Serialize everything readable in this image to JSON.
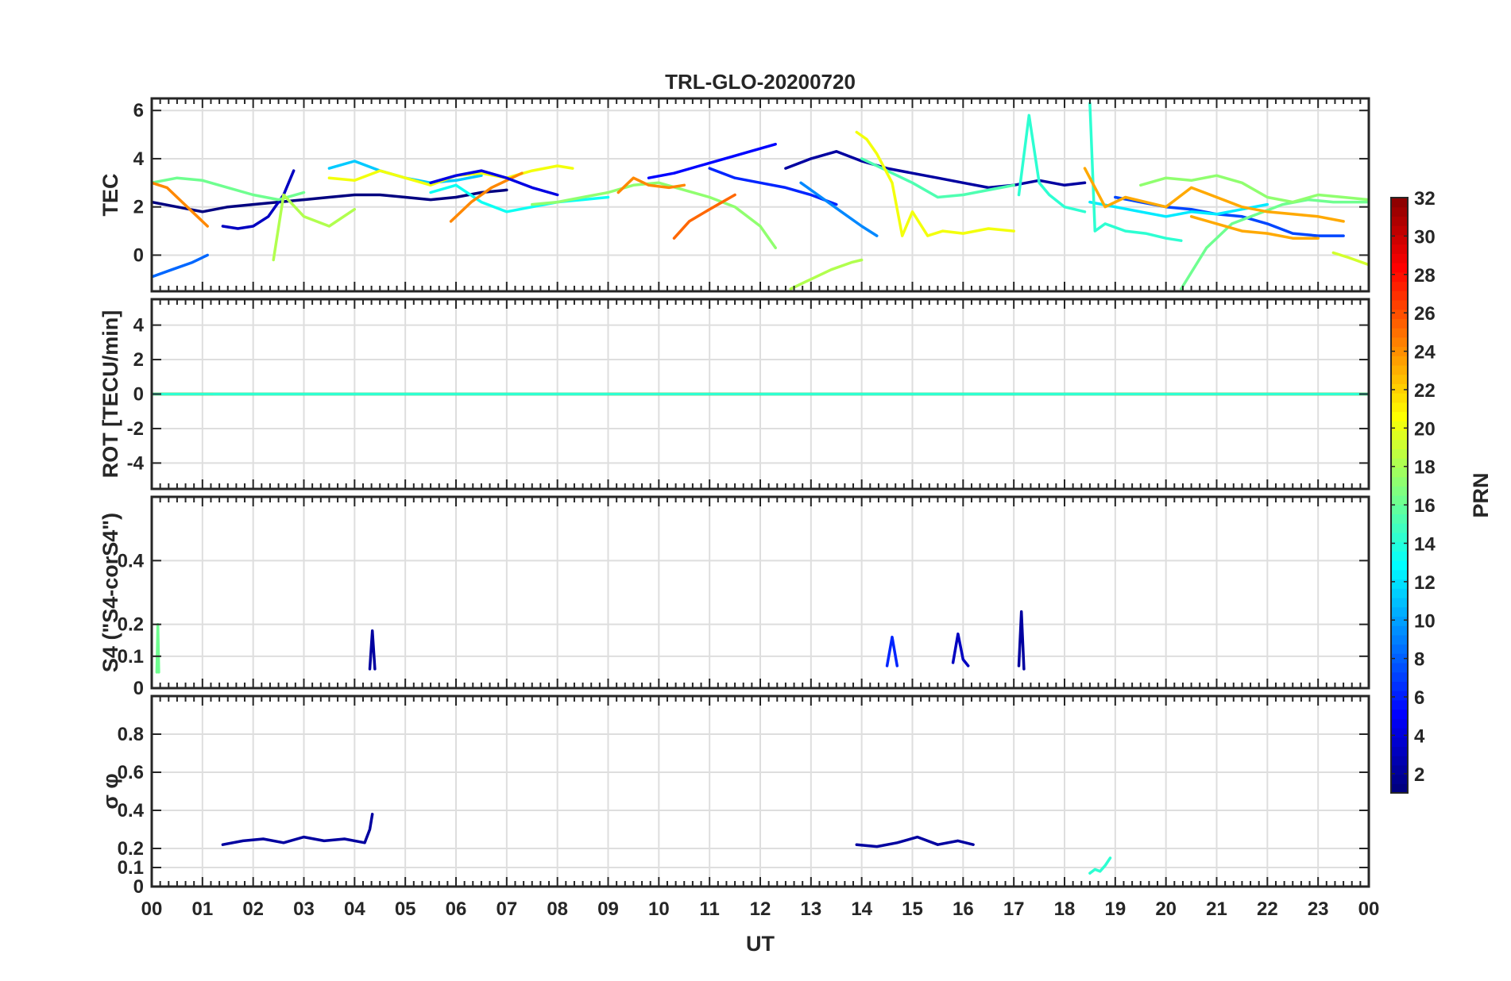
{
  "chart_data": {
    "type": "line",
    "title": "TRL-GLO-20200720",
    "xlabel": "UT",
    "x_range": [
      0,
      24
    ],
    "x_tick_labels": [
      "00",
      "01",
      "02",
      "03",
      "04",
      "05",
      "06",
      "07",
      "08",
      "09",
      "10",
      "11",
      "12",
      "13",
      "14",
      "15",
      "16",
      "17",
      "18",
      "19",
      "20",
      "21",
      "22",
      "23",
      "00"
    ],
    "grid": true,
    "colorbar": {
      "label": "PRN",
      "range": [
        1,
        32
      ],
      "tick_labels": [
        "32",
        "30",
        "28",
        "26",
        "24",
        "22",
        "20",
        "18",
        "16",
        "14",
        "12",
        "10",
        "8",
        "6",
        "4",
        "2"
      ],
      "colormap": "jet",
      "placement": "right"
    },
    "panels": [
      {
        "id": "tec",
        "ylabel": "TEC",
        "ylim": [
          -1.5,
          6.5
        ],
        "y_ticks": [
          0,
          2,
          4,
          6
        ],
        "y_tick_labels": [
          "0",
          "2",
          "4",
          "6"
        ],
        "series": [
          {
            "prn": 1,
            "x": [
              0,
              0.5,
              1,
              1.5,
              2,
              2.5,
              3,
              3.5,
              4,
              4.5,
              5,
              5.5,
              6,
              6.5,
              7
            ],
            "y": [
              2.2,
              2.0,
              1.8,
              2.0,
              2.1,
              2.2,
              2.3,
              2.4,
              2.5,
              2.5,
              2.4,
              2.3,
              2.4,
              2.6,
              2.7
            ]
          },
          {
            "prn": 2,
            "x": [
              12.5,
              13,
              13.5,
              14,
              14.5,
              15,
              15.5,
              16,
              16.5,
              17,
              17.5,
              18,
              18.4
            ],
            "y": [
              3.6,
              4.0,
              4.3,
              3.9,
              3.6,
              3.4,
              3.2,
              3.0,
              2.8,
              2.9,
              3.1,
              2.9,
              3.0
            ]
          },
          {
            "prn": 3,
            "x": [
              1.4,
              1.7,
              2.0,
              2.3,
              2.6,
              2.8
            ],
            "y": [
              1.2,
              1.1,
              1.2,
              1.6,
              2.5,
              3.5
            ]
          },
          {
            "prn": 5,
            "x": [
              9.8,
              10.3,
              10.8,
              11.3,
              11.8,
              12.3
            ],
            "y": [
              3.2,
              3.4,
              3.7,
              4.0,
              4.3,
              4.6
            ]
          },
          {
            "prn": 6,
            "x": [
              11.0,
              11.5,
              12.0,
              12.5,
              13.0,
              13.5
            ],
            "y": [
              3.6,
              3.2,
              3.0,
              2.8,
              2.5,
              2.1
            ]
          },
          {
            "prn": 7,
            "x": [
              19.0,
              19.5,
              20.0,
              20.5,
              21.0,
              21.5,
              22.0,
              22.5,
              23.0,
              23.5
            ],
            "y": [
              2.4,
              2.2,
              2.0,
              1.9,
              1.7,
              1.6,
              1.3,
              0.9,
              0.8,
              0.8
            ]
          },
          {
            "prn": 8,
            "x": [
              0,
              0.4,
              0.8,
              1.1
            ],
            "y": [
              -0.9,
              -0.6,
              -0.3,
              0.0
            ]
          },
          {
            "prn": 9,
            "x": [
              12.8,
              13.2,
              13.6,
              14.0,
              14.3
            ],
            "y": [
              3.0,
              2.4,
              1.8,
              1.2,
              0.8
            ]
          },
          {
            "prn": 11,
            "x": [
              3.5,
              4.0,
              4.5,
              5.0,
              5.5,
              6.0,
              6.5
            ],
            "y": [
              3.6,
              3.9,
              3.5,
              3.2,
              3.0,
              3.1,
              3.3
            ]
          },
          {
            "prn": 13,
            "x": [
              5.5,
              6.0,
              6.5,
              7.0,
              7.5,
              8.0,
              8.5,
              9.0
            ],
            "y": [
              2.6,
              2.9,
              2.2,
              1.8,
              2.0,
              2.2,
              2.3,
              2.4
            ]
          },
          {
            "prn": 12,
            "x": [
              18.5,
              19,
              19.5,
              20,
              20.5,
              21,
              21.5,
              22
            ],
            "y": [
              2.2,
              2.0,
              1.8,
              1.6,
              1.8,
              1.7,
              1.9,
              2.1
            ]
          },
          {
            "prn": 14,
            "x": [
              17.1,
              17.3,
              17.5,
              17.7,
              18.0,
              18.4
            ],
            "y": [
              2.5,
              5.8,
              3.0,
              2.5,
              2.0,
              1.8
            ]
          },
          {
            "prn": 14,
            "x": [
              18.5,
              18.6,
              18.8,
              19.2,
              19.6,
              20.0,
              20.3
            ],
            "y": [
              6.3,
              1.0,
              1.3,
              1.0,
              0.9,
              0.7,
              0.6
            ]
          },
          {
            "prn": 15,
            "x": [
              14.0,
              14.5,
              15.0,
              15.5,
              16.0,
              16.5,
              17.0
            ],
            "y": [
              4.0,
              3.5,
              3.0,
              2.4,
              2.5,
              2.7,
              2.9
            ]
          },
          {
            "prn": 16,
            "x": [
              0,
              0.5,
              1.0,
              1.5,
              2.0,
              2.5,
              3.0
            ],
            "y": [
              3.0,
              3.2,
              3.1,
              2.8,
              2.5,
              2.3,
              2.6
            ]
          },
          {
            "prn": 16,
            "x": [
              20.3,
              20.8,
              21.3,
              21.8,
              22.3,
              22.8,
              23.3,
              24
            ],
            "y": [
              -1.4,
              0.3,
              1.3,
              1.7,
              2.1,
              2.3,
              2.2,
              2.2
            ]
          },
          {
            "prn": 17,
            "x": [
              7.5,
              8.0,
              8.5,
              9.0,
              9.5,
              10.0,
              10.5,
              11.0,
              11.5,
              12.0,
              12.3
            ],
            "y": [
              2.1,
              2.2,
              2.4,
              2.6,
              2.9,
              3.0,
              2.7,
              2.4,
              2.0,
              1.2,
              0.3
            ]
          },
          {
            "prn": 17,
            "x": [
              19.5,
              20.0,
              20.5,
              21.0,
              21.5,
              22.0,
              22.5,
              23.0,
              23.5,
              24
            ],
            "y": [
              2.9,
              3.2,
              3.1,
              3.3,
              3.0,
              2.4,
              2.2,
              2.5,
              2.4,
              2.3
            ]
          },
          {
            "prn": 18,
            "x": [
              2.4,
              2.6,
              3.0,
              3.5,
              4.0
            ],
            "y": [
              -0.2,
              2.5,
              1.6,
              1.2,
              1.9
            ]
          },
          {
            "prn": 18,
            "x": [
              12.6,
              13.0,
              13.4,
              13.8,
              14.0
            ],
            "y": [
              -1.4,
              -1.0,
              -0.6,
              -0.3,
              -0.2
            ]
          },
          {
            "prn": 19,
            "x": [
              23.3,
              23.6,
              24
            ],
            "y": [
              0.1,
              -0.1,
              -0.4
            ]
          },
          {
            "prn": 20,
            "x": [
              3.5,
              4.0,
              4.5,
              5.0,
              5.5,
              6.0,
              6.5,
              7.0,
              7.5,
              8.0,
              8.3
            ],
            "y": [
              3.2,
              3.1,
              3.5,
              3.2,
              2.9,
              3.3,
              3.4,
              3.2,
              3.5,
              3.7,
              3.6
            ]
          },
          {
            "prn": 20,
            "x": [
              13.9,
              14.1,
              14.3,
              14.6,
              14.8,
              15.0,
              15.3,
              15.6,
              16.0,
              16.5,
              17.0
            ],
            "y": [
              5.1,
              4.8,
              4.2,
              3.0,
              0.8,
              1.8,
              0.8,
              1.0,
              0.9,
              1.1,
              1.0
            ]
          },
          {
            "prn": 24,
            "x": [
              0,
              0.3,
              0.6,
              0.9,
              1.1
            ],
            "y": [
              3.0,
              2.8,
              2.2,
              1.6,
              1.2
            ]
          },
          {
            "prn": 24,
            "x": [
              5.9,
              6.3,
              6.7,
              7.0,
              7.3
            ],
            "y": [
              1.4,
              2.2,
              2.8,
              3.1,
              3.4
            ]
          },
          {
            "prn": 24,
            "x": [
              9.2,
              9.5,
              9.8,
              10.2,
              10.5
            ],
            "y": [
              2.6,
              3.2,
              2.9,
              2.8,
              2.9
            ]
          },
          {
            "prn": 25,
            "x": [
              10.3,
              10.6,
              11.0,
              11.5
            ],
            "y": [
              0.7,
              1.4,
              1.9,
              2.5
            ]
          },
          {
            "prn": 23,
            "x": [
              18.4,
              18.8,
              19.2,
              19.6,
              20.0,
              20.5,
              21.0,
              21.5,
              22.0,
              22.5,
              23.0,
              23.5
            ],
            "y": [
              3.6,
              2.0,
              2.4,
              2.2,
              2.0,
              2.8,
              2.4,
              2.0,
              1.8,
              1.7,
              1.6,
              1.4
            ]
          },
          {
            "prn": 23,
            "x": [
              20.5,
              21.0,
              21.5,
              22.0,
              22.5,
              23.0
            ],
            "y": [
              1.6,
              1.3,
              1.0,
              0.9,
              0.7,
              0.7
            ]
          },
          {
            "prn": 4,
            "x": [
              5.5,
              6.0,
              6.5,
              7.0,
              7.5,
              8.0
            ],
            "y": [
              3.0,
              3.3,
              3.5,
              3.2,
              2.8,
              2.5
            ]
          }
        ]
      },
      {
        "id": "rot",
        "ylabel": "ROT [TECU/min]",
        "ylim": [
          -5.5,
          5.5
        ],
        "y_ticks": [
          -4,
          -2,
          0,
          2,
          4
        ],
        "y_tick_labels": [
          "-4",
          "-2",
          "0",
          "2",
          "4"
        ],
        "series": [
          {
            "prn": 1,
            "x": [
              0,
              2,
              4,
              6,
              8,
              10,
              12,
              14,
              16,
              18,
              20,
              22,
              24
            ],
            "y": [
              0,
              0,
              0,
              0,
              0,
              0,
              0,
              0,
              0,
              0,
              0,
              0,
              0
            ]
          },
          {
            "prn": 20,
            "x": [
              0,
              3,
              6,
              9,
              12,
              15,
              18,
              21,
              24
            ],
            "y": [
              0,
              0,
              0,
              0,
              0,
              0,
              0,
              0,
              0
            ]
          },
          {
            "prn": 24,
            "x": [
              0,
              1.2
            ],
            "y": [
              0,
              0
            ]
          },
          {
            "prn": 24,
            "x": [
              9,
              12
            ],
            "y": [
              0,
              0
            ]
          },
          {
            "prn": 24,
            "x": [
              19,
              24
            ],
            "y": [
              0,
              0
            ]
          },
          {
            "prn": 14,
            "x": [
              0,
              24
            ],
            "y": [
              0,
              0
            ]
          }
        ]
      },
      {
        "id": "s4",
        "ylabel": "S4 (\"S4-corS4\")",
        "ylim": [
          0,
          0.6
        ],
        "y_ticks": [
          0,
          0.1,
          0.2,
          0.4
        ],
        "y_tick_labels": [
          "0",
          "0.1",
          "0.2",
          "0.4"
        ],
        "series": [
          {
            "prn": 2,
            "x": [
              4.3,
              4.35,
              4.4
            ],
            "y": [
              0.06,
              0.18,
              0.06
            ]
          },
          {
            "prn": 2,
            "x": [
              17.1,
              17.15,
              17.2
            ],
            "y": [
              0.07,
              0.24,
              0.06
            ]
          },
          {
            "prn": 3,
            "x": [
              15.8,
              15.9,
              16.0,
              16.1
            ],
            "y": [
              0.08,
              0.17,
              0.09,
              0.07
            ]
          },
          {
            "prn": 16,
            "x": [
              0.1,
              0.12,
              0.14
            ],
            "y": [
              0.05,
              0.2,
              0.05
            ]
          },
          {
            "prn": 6,
            "x": [
              14.5,
              14.6,
              14.7
            ],
            "y": [
              0.07,
              0.16,
              0.07
            ]
          }
        ]
      },
      {
        "id": "sigma",
        "ylabel": "σ φ",
        "ylim": [
          0,
          1.0
        ],
        "y_ticks": [
          0,
          0.1,
          0.2,
          0.4,
          0.6,
          0.8
        ],
        "y_tick_labels": [
          "0",
          "0.1",
          "0.2",
          "0.4",
          "0.6",
          "0.8"
        ],
        "series": [
          {
            "prn": 2,
            "x": [
              1.4,
              1.8,
              2.2,
              2.6,
              3.0,
              3.4,
              3.8,
              4.2,
              4.3,
              4.35
            ],
            "y": [
              0.22,
              0.24,
              0.25,
              0.23,
              0.26,
              0.24,
              0.25,
              0.23,
              0.3,
              0.38
            ]
          },
          {
            "prn": 2,
            "x": [
              13.9,
              14.3,
              14.7,
              15.1,
              15.5,
              15.9,
              16.2
            ],
            "y": [
              0.22,
              0.21,
              0.23,
              0.26,
              0.22,
              0.24,
              0.22
            ]
          },
          {
            "prn": 14,
            "x": [
              18.5,
              18.6,
              18.7,
              18.8,
              18.9
            ],
            "y": [
              0.07,
              0.09,
              0.08,
              0.11,
              0.15
            ]
          }
        ]
      }
    ]
  }
}
